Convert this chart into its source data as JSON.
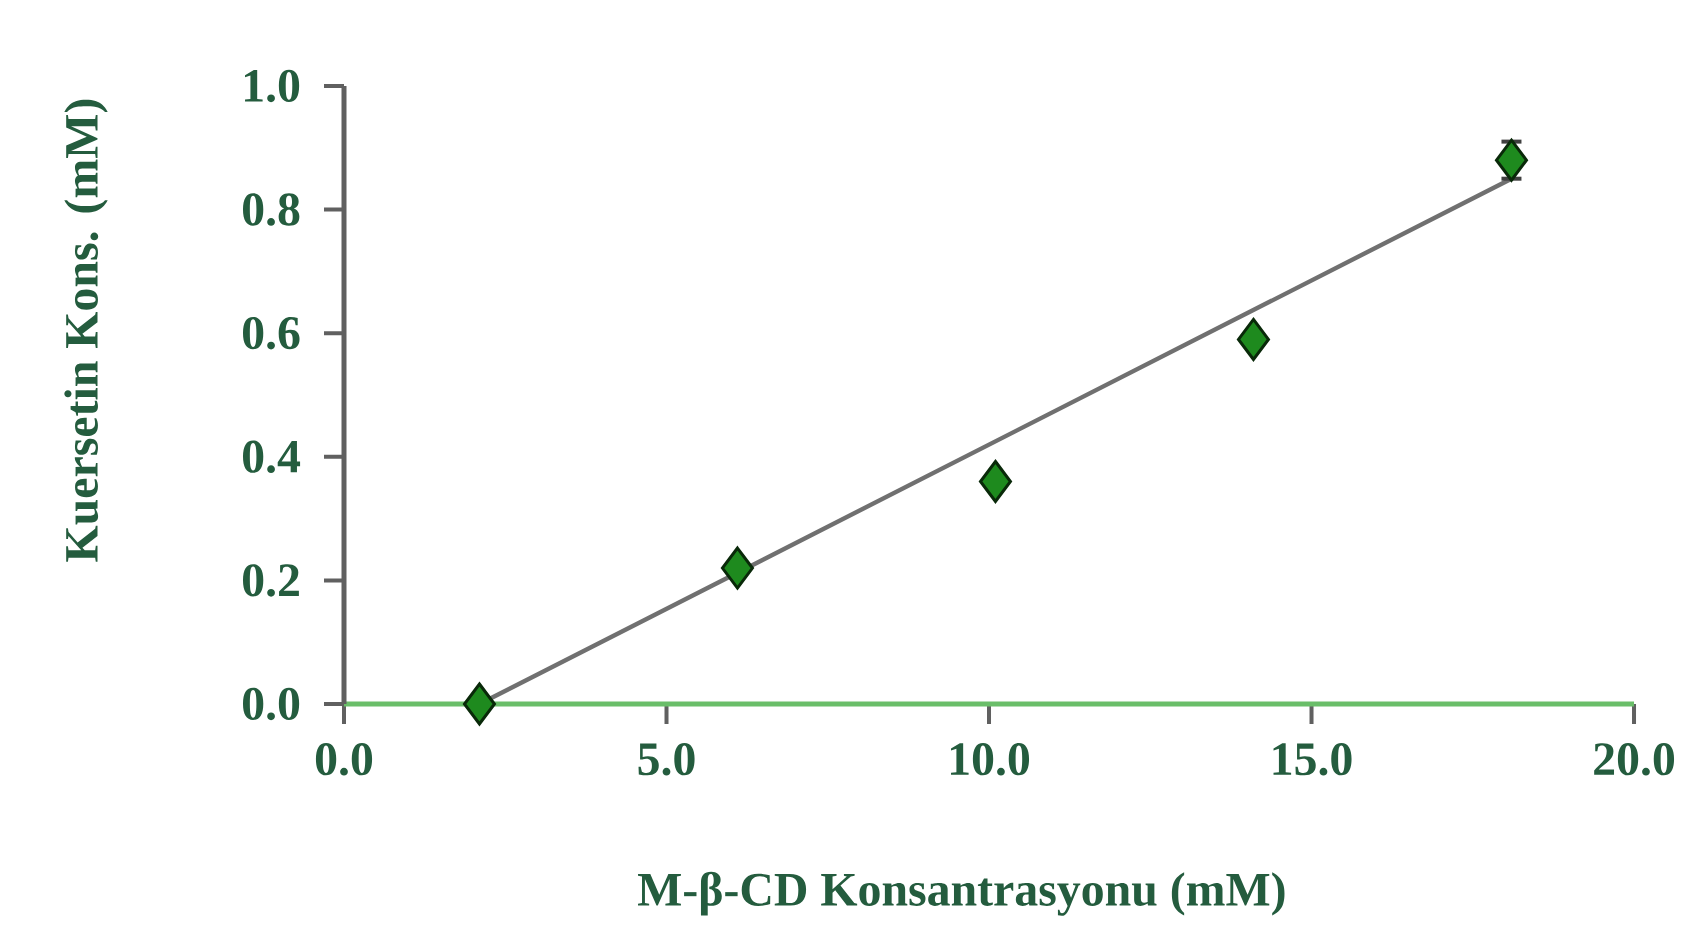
{
  "chart_data": {
    "type": "scatter",
    "xlabel": "M-β-CD Konsantrasyonu (mM)",
    "ylabel": "Kuersetin Kons. (mM)",
    "xlim": [
      0,
      20
    ],
    "ylim": [
      0,
      1
    ],
    "xticks": [
      {
        "value": 0,
        "label": "0.0"
      },
      {
        "value": 5,
        "label": "5.0"
      },
      {
        "value": 10,
        "label": "10.0"
      },
      {
        "value": 15,
        "label": "15.0"
      },
      {
        "value": 20,
        "label": "20.0"
      }
    ],
    "yticks": [
      {
        "value": 0,
        "label": "0.0"
      },
      {
        "value": 0.2,
        "label": "0.2"
      },
      {
        "value": 0.4,
        "label": "0.4"
      },
      {
        "value": 0.6,
        "label": "0.6"
      },
      {
        "value": 0.8,
        "label": "0.8"
      },
      {
        "value": 1,
        "label": "1.0"
      }
    ],
    "series": [
      {
        "color": "#1e8a1e",
        "marker": "diamond",
        "x": [
          2.1,
          6.1,
          10.1,
          14.1,
          18.1
        ],
        "values": [
          0,
          0.22,
          0.36,
          0.59,
          0.88
        ],
        "errors": [
          null,
          null,
          null,
          null,
          0.03
        ]
      },
      {
        "type": "line",
        "color": "#707070",
        "marker": "none",
        "line_style": "solid",
        "x": [
          2.1,
          18.1
        ],
        "values": [
          0,
          0.85
        ]
      }
    ]
  }
}
